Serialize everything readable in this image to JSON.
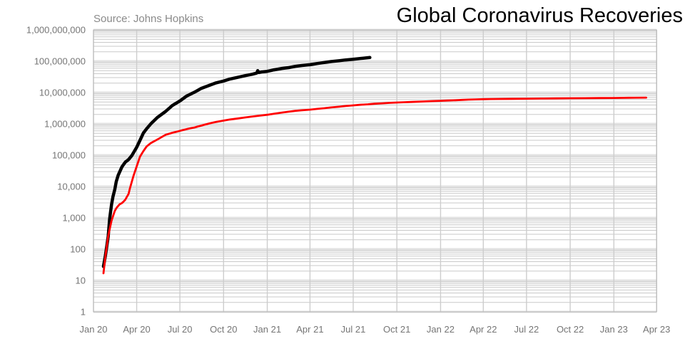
{
  "chart_data": {
    "type": "line",
    "title": "Global Coronavirus Recoveries",
    "source": "Source: Johns Hopkins",
    "legend": "none",
    "grid": {
      "horizontal_minor": true,
      "horizontal_major": true,
      "vertical": true
    },
    "y_axis": {
      "scale": "log",
      "min": 1,
      "max": 1000000000,
      "ticks": [
        {
          "value": 1,
          "label": "1"
        },
        {
          "value": 10,
          "label": "10"
        },
        {
          "value": 100,
          "label": "100"
        },
        {
          "value": 1000,
          "label": "1,000"
        },
        {
          "value": 10000,
          "label": "10,000"
        },
        {
          "value": 100000,
          "label": "100,000"
        },
        {
          "value": 1000000,
          "label": "1,000,000"
        },
        {
          "value": 10000000,
          "label": "10,000,000"
        },
        {
          "value": 100000000,
          "label": "100,000,000"
        },
        {
          "value": 1000000000,
          "label": "1,000,000,000"
        }
      ]
    },
    "x_axis": {
      "start": "2020-01-01",
      "end": "2023-04-01",
      "ticks": [
        {
          "label": "Jan 20",
          "date": "2020-01-01"
        },
        {
          "label": "Apr 20",
          "date": "2020-04-01"
        },
        {
          "label": "Jul 20",
          "date": "2020-07-01"
        },
        {
          "label": "Oct 20",
          "date": "2020-10-01"
        },
        {
          "label": "Jan 21",
          "date": "2021-01-01"
        },
        {
          "label": "Apr 21",
          "date": "2021-04-01"
        },
        {
          "label": "Jul 21",
          "date": "2021-07-01"
        },
        {
          "label": "Oct 21",
          "date": "2021-10-01"
        },
        {
          "label": "Jan 22",
          "date": "2022-01-01"
        },
        {
          "label": "Apr 22",
          "date": "2022-04-01"
        },
        {
          "label": "Jul 22",
          "date": "2022-07-01"
        },
        {
          "label": "Oct 22",
          "date": "2022-10-01"
        },
        {
          "label": "Jan 23",
          "date": "2023-01-01"
        },
        {
          "label": "Apr 23",
          "date": "2023-04-01"
        }
      ]
    },
    "series": [
      {
        "id": "black-line",
        "color": "#000000",
        "width": 4.5,
        "points": [
          [
            "2020-01-22",
            28
          ],
          [
            "2020-01-26",
            60
          ],
          [
            "2020-02-01",
            250
          ],
          [
            "2020-02-04",
            900
          ],
          [
            "2020-02-08",
            2650
          ],
          [
            "2020-02-11",
            4740
          ],
          [
            "2020-02-15",
            8100
          ],
          [
            "2020-02-18",
            14350
          ],
          [
            "2020-02-22",
            22900
          ],
          [
            "2020-03-01",
            42700
          ],
          [
            "2020-03-08",
            60200
          ],
          [
            "2020-03-15",
            72600
          ],
          [
            "2020-03-22",
            98300
          ],
          [
            "2020-04-01",
            180000
          ],
          [
            "2020-04-08",
            300000
          ],
          [
            "2020-04-15",
            510000
          ],
          [
            "2020-04-22",
            700000
          ],
          [
            "2020-05-01",
            1010000
          ],
          [
            "2020-05-15",
            1620000
          ],
          [
            "2020-06-01",
            2500000
          ],
          [
            "2020-06-15",
            3850000
          ],
          [
            "2020-07-01",
            5400000
          ],
          [
            "2020-07-15",
            7700000
          ],
          [
            "2020-08-01",
            10300000
          ],
          [
            "2020-08-15",
            13600000
          ],
          [
            "2020-09-01",
            17000000
          ],
          [
            "2020-09-15",
            20400000
          ],
          [
            "2020-10-01",
            23300000
          ],
          [
            "2020-10-15",
            27100000
          ],
          [
            "2020-11-01",
            31000000
          ],
          [
            "2020-11-15",
            34500000
          ],
          [
            "2020-12-01",
            38500000
          ],
          [
            "2020-12-10",
            42000000
          ],
          [
            "2020-12-12",
            50000000
          ],
          [
            "2020-12-14",
            43500000
          ],
          [
            "2020-12-20",
            45500000
          ],
          [
            "2021-01-01",
            47500000
          ],
          [
            "2021-01-15",
            53000000
          ],
          [
            "2021-02-01",
            59000000
          ],
          [
            "2021-02-15",
            62500000
          ],
          [
            "2021-03-01",
            68500000
          ],
          [
            "2021-03-15",
            73000000
          ],
          [
            "2021-04-01",
            77500000
          ],
          [
            "2021-04-15",
            84000000
          ],
          [
            "2021-05-01",
            91000000
          ],
          [
            "2021-05-15",
            97500000
          ],
          [
            "2021-06-01",
            104000000
          ],
          [
            "2021-06-15",
            110000000
          ],
          [
            "2021-07-01",
            116000000
          ],
          [
            "2021-07-15",
            122000000
          ],
          [
            "2021-08-05",
            131000000
          ]
        ]
      },
      {
        "id": "red-line",
        "color": "#ff0000",
        "width": 2.8,
        "points": [
          [
            "2020-01-22",
            17
          ],
          [
            "2020-01-26",
            56
          ],
          [
            "2020-02-01",
            259
          ],
          [
            "2020-02-04",
            427
          ],
          [
            "2020-02-08",
            813
          ],
          [
            "2020-02-11",
            1115
          ],
          [
            "2020-02-15",
            1666
          ],
          [
            "2020-02-19",
            2122
          ],
          [
            "2020-02-25",
            2700
          ],
          [
            "2020-03-01",
            2977
          ],
          [
            "2020-03-04",
            3285
          ],
          [
            "2020-03-08",
            3802
          ],
          [
            "2020-03-11",
            4615
          ],
          [
            "2020-03-15",
            5820
          ],
          [
            "2020-03-18",
            8950
          ],
          [
            "2020-03-22",
            14700
          ],
          [
            "2020-03-25",
            21200
          ],
          [
            "2020-04-01",
            44200
          ],
          [
            "2020-04-08",
            90000
          ],
          [
            "2020-04-15",
            135000
          ],
          [
            "2020-04-22",
            190000
          ],
          [
            "2020-05-01",
            245000
          ],
          [
            "2020-05-15",
            320000
          ],
          [
            "2020-06-01",
            450000
          ],
          [
            "2020-06-15",
            520000
          ],
          [
            "2020-07-01",
            600000
          ],
          [
            "2020-07-15",
            680000
          ],
          [
            "2020-08-01",
            770000
          ],
          [
            "2020-08-15",
            880000
          ],
          [
            "2020-09-01",
            1030000
          ],
          [
            "2020-09-15",
            1150000
          ],
          [
            "2020-10-01",
            1270000
          ],
          [
            "2020-10-15",
            1380000
          ],
          [
            "2020-11-01",
            1500000
          ],
          [
            "2020-11-15",
            1600000
          ],
          [
            "2020-12-01",
            1720000
          ],
          [
            "2020-12-15",
            1830000
          ],
          [
            "2021-01-01",
            1950000
          ],
          [
            "2021-01-15",
            2100000
          ],
          [
            "2021-02-01",
            2300000
          ],
          [
            "2021-02-15",
            2450000
          ],
          [
            "2021-03-01",
            2600000
          ],
          [
            "2021-03-15",
            2720000
          ],
          [
            "2021-04-01",
            2850000
          ],
          [
            "2021-04-15",
            3000000
          ],
          [
            "2021-05-01",
            3160000
          ],
          [
            "2021-05-15",
            3350000
          ],
          [
            "2021-06-01",
            3527000
          ],
          [
            "2021-06-15",
            3710000
          ],
          [
            "2021-07-01",
            3890000
          ],
          [
            "2021-07-15",
            4060000
          ],
          [
            "2021-08-01",
            4228000
          ],
          [
            "2021-08-15",
            4390000
          ],
          [
            "2021-09-01",
            4541000
          ],
          [
            "2021-09-15",
            4680000
          ],
          [
            "2021-10-01",
            4800000
          ],
          [
            "2021-10-15",
            4900000
          ],
          [
            "2021-11-01",
            5008000
          ],
          [
            "2021-11-15",
            5120000
          ],
          [
            "2021-12-01",
            5232000
          ],
          [
            "2021-12-15",
            5330000
          ],
          [
            "2022-01-01",
            5437000
          ],
          [
            "2022-01-15",
            5560000
          ],
          [
            "2022-02-01",
            5694000
          ],
          [
            "2022-02-15",
            5820000
          ],
          [
            "2022-03-01",
            5954000
          ],
          [
            "2022-03-15",
            6050000
          ],
          [
            "2022-04-01",
            6142000
          ],
          [
            "2022-04-15",
            6200000
          ],
          [
            "2022-05-01",
            6248000
          ],
          [
            "2022-06-01",
            6308000
          ],
          [
            "2022-07-01",
            6362000
          ],
          [
            "2022-08-01",
            6443000
          ],
          [
            "2022-09-01",
            6523000
          ],
          [
            "2022-10-01",
            6577000
          ],
          [
            "2022-11-01",
            6620000
          ],
          [
            "2022-12-01",
            6669000
          ],
          [
            "2023-01-01",
            6729000
          ],
          [
            "2023-02-01",
            6812000
          ],
          [
            "2023-03-10",
            6881000
          ]
        ]
      }
    ]
  }
}
